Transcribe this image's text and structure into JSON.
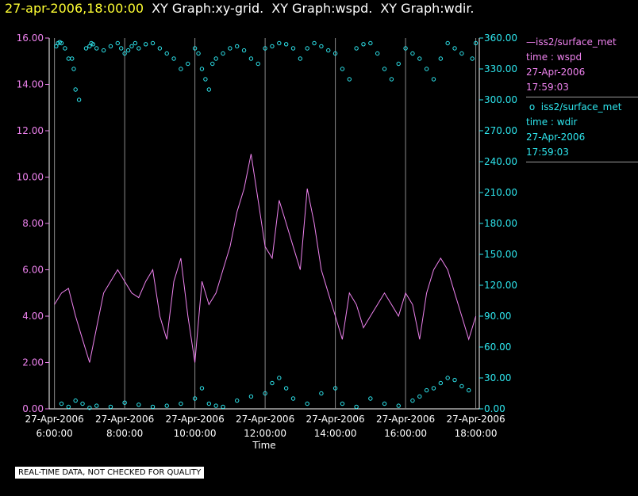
{
  "header": {
    "timestamp": "27-apr-2006,18:00:00",
    "segments": [
      "XY Graph:xy-grid.",
      "XY Graph:wspd.",
      "XY Graph:wdir."
    ]
  },
  "legend": {
    "series1": {
      "label": "iss2/surface_met",
      "field": "time : wspd",
      "date": "27-Apr-2006",
      "time": "17:59:03",
      "color": "#ee82ee"
    },
    "series2": {
      "label": "iss2/surface_met",
      "field": "time : wdir",
      "date": "27-Apr-2006",
      "time": "17:59:03",
      "color": "#2ee6ee"
    }
  },
  "note": "REAL-TIME DATA, NOT CHECKED FOR QUALITY",
  "chart_data": {
    "type": "line",
    "xlabel": "Time",
    "x_range_hours": [
      5.85,
      18.1
    ],
    "x_ticks": [
      {
        "date": "27-Apr-2006",
        "time": "6:00:00",
        "hour": 6
      },
      {
        "date": "27-Apr-2006",
        "time": "8:00:00",
        "hour": 8
      },
      {
        "date": "27-Apr-2006",
        "time": "10:00:00",
        "hour": 10
      },
      {
        "date": "27-Apr-2006",
        "time": "12:00:00",
        "hour": 12
      },
      {
        "date": "27-Apr-2006",
        "time": "14:00:00",
        "hour": 14
      },
      {
        "date": "27-Apr-2006",
        "time": "16:00:00",
        "hour": 16
      },
      {
        "date": "27-Apr-2006",
        "time": "18:00:00",
        "hour": 18
      }
    ],
    "y_left": {
      "range": [
        0,
        16
      ],
      "ticks": [
        "0.00",
        "2.00",
        "4.00",
        "6.00",
        "8.00",
        "10.00",
        "12.00",
        "14.00",
        "16.00"
      ],
      "color": "#ee82ee"
    },
    "y_right": {
      "range": [
        0,
        360
      ],
      "ticks": [
        "0.00",
        "30.00",
        "60.00",
        "90.00",
        "120.00",
        "150.00",
        "180.00",
        "210.00",
        "240.00",
        "270.00",
        "300.00",
        "330.00",
        "360.00"
      ],
      "color": "#2ee6ee"
    },
    "grid": "vertical",
    "series": [
      {
        "name": "wspd",
        "axis": "left",
        "style": "line",
        "color": "#ee82ee",
        "x": [
          6.0,
          6.2,
          6.4,
          6.6,
          6.8,
          7.0,
          7.2,
          7.4,
          7.6,
          7.8,
          8.0,
          8.2,
          8.4,
          8.6,
          8.8,
          9.0,
          9.2,
          9.4,
          9.6,
          9.8,
          10.0,
          10.2,
          10.4,
          10.6,
          10.8,
          11.0,
          11.2,
          11.4,
          11.6,
          11.8,
          12.0,
          12.2,
          12.4,
          12.6,
          12.8,
          13.0,
          13.2,
          13.4,
          13.6,
          13.8,
          14.0,
          14.2,
          14.4,
          14.6,
          14.8,
          15.0,
          15.2,
          15.4,
          15.6,
          15.8,
          16.0,
          16.2,
          16.4,
          16.6,
          16.8,
          17.0,
          17.2,
          17.4,
          17.6,
          17.8,
          18.0
        ],
        "y": [
          4.5,
          5.0,
          5.2,
          4.0,
          3.0,
          2.0,
          3.5,
          5.0,
          5.5,
          6.0,
          5.5,
          5.0,
          4.8,
          5.5,
          6.0,
          4.0,
          3.0,
          5.5,
          6.5,
          4.0,
          2.0,
          5.5,
          4.5,
          5.0,
          6.0,
          7.0,
          8.5,
          9.5,
          11.0,
          9.0,
          7.0,
          6.5,
          9.0,
          8.0,
          7.0,
          6.0,
          9.5,
          8.0,
          6.0,
          5.0,
          4.0,
          3.0,
          5.0,
          4.5,
          3.5,
          4.0,
          4.5,
          5.0,
          4.5,
          4.0,
          5.0,
          4.5,
          3.0,
          5.0,
          6.0,
          6.5,
          6.0,
          5.0,
          4.0,
          3.0,
          4.0
        ]
      },
      {
        "name": "wdir",
        "axis": "right",
        "style": "scatter",
        "color": "#2ee6ee",
        "x": [
          6.05,
          6.1,
          6.15,
          6.2,
          6.3,
          6.4,
          6.5,
          6.55,
          6.6,
          6.7,
          6.9,
          7.0,
          7.05,
          7.1,
          7.2,
          7.4,
          7.6,
          7.8,
          7.9,
          8.0,
          8.1,
          8.2,
          8.3,
          8.4,
          8.6,
          8.8,
          9.0,
          9.2,
          9.4,
          9.6,
          9.8,
          10.0,
          10.1,
          10.2,
          10.3,
          10.4,
          10.5,
          10.6,
          10.8,
          11.0,
          11.2,
          11.4,
          11.6,
          11.8,
          12.0,
          12.2,
          12.4,
          12.6,
          12.8,
          13.0,
          13.2,
          13.4,
          13.6,
          13.8,
          14.0,
          14.2,
          14.4,
          14.6,
          14.8,
          15.0,
          15.2,
          15.4,
          15.6,
          15.8,
          16.0,
          16.2,
          16.4,
          16.6,
          16.8,
          17.0,
          17.2,
          17.4,
          17.6,
          17.9,
          18.0,
          6.2,
          6.4,
          6.6,
          6.8,
          7.0,
          7.2,
          7.6,
          8.0,
          8.4,
          8.8,
          9.2,
          9.6,
          10.0,
          10.2,
          10.4,
          10.6,
          10.8,
          11.2,
          11.6,
          12.0,
          12.2,
          12.4,
          12.6,
          12.8,
          13.2,
          13.6,
          14.0,
          14.2,
          14.6,
          15.0,
          15.4,
          15.8,
          16.2,
          16.4,
          16.6,
          16.8,
          17.0,
          17.2,
          17.4,
          17.6,
          17.8
        ],
        "y": [
          352,
          355,
          356,
          355,
          350,
          340,
          340,
          330,
          310,
          300,
          350,
          352,
          355,
          354,
          350,
          348,
          352,
          355,
          350,
          345,
          348,
          352,
          355,
          350,
          354,
          355,
          350,
          345,
          340,
          330,
          335,
          350,
          345,
          330,
          320,
          310,
          335,
          340,
          345,
          350,
          352,
          348,
          340,
          335,
          350,
          352,
          355,
          354,
          350,
          340,
          350,
          355,
          352,
          348,
          345,
          330,
          320,
          350,
          354,
          355,
          345,
          330,
          320,
          335,
          350,
          345,
          340,
          330,
          320,
          340,
          355,
          350,
          345,
          340,
          355,
          5,
          2,
          8,
          5,
          1,
          3,
          2,
          6,
          4,
          2,
          3,
          5,
          10,
          20,
          5,
          3,
          2,
          8,
          12,
          15,
          25,
          30,
          20,
          10,
          5,
          15,
          20,
          5,
          2,
          10,
          5,
          3,
          8,
          12,
          18,
          20,
          25,
          30,
          28,
          22,
          18
        ]
      }
    ]
  }
}
